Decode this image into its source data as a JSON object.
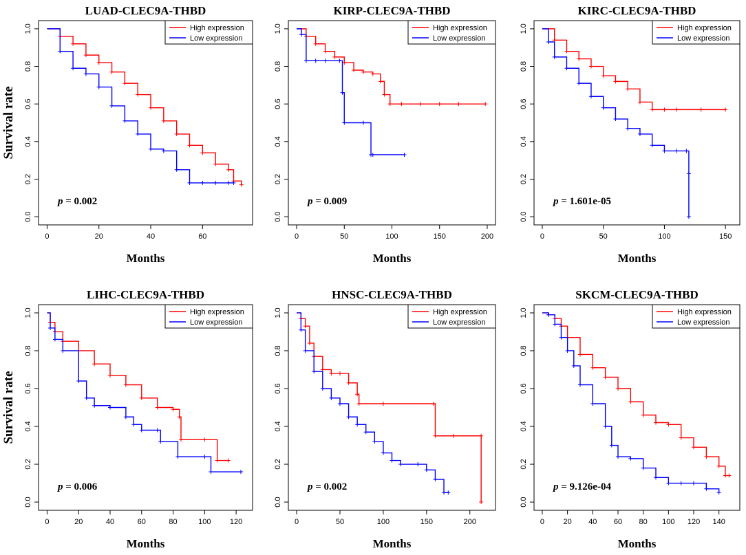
{
  "colors": {
    "high": "#ff0000",
    "low": "#0000ff",
    "axis": "#000000"
  },
  "figure": {
    "y_axis_label": "Survival rate"
  },
  "chart_data": [
    {
      "type": "line",
      "title": "LUAD-CLEC9A-THBD",
      "xlabel": "Months",
      "ylabel": "Survival rate",
      "xlim": [
        0,
        76
      ],
      "xticks": [
        0,
        20,
        40,
        60
      ],
      "ylim": [
        0,
        1
      ],
      "yticks": [
        0.0,
        0.2,
        0.4,
        0.6,
        0.8,
        1.0
      ],
      "legend": [
        "High expression",
        "Low expression"
      ],
      "p_prefix": "p",
      "p_value": "= 0.002",
      "series": [
        {
          "name": "High expression",
          "x": [
            0,
            5,
            10,
            15,
            20,
            25,
            30,
            35,
            40,
            45,
            50,
            55,
            60,
            65,
            70,
            72,
            75
          ],
          "y": [
            1.0,
            0.96,
            0.92,
            0.86,
            0.82,
            0.77,
            0.71,
            0.65,
            0.58,
            0.51,
            0.44,
            0.38,
            0.34,
            0.28,
            0.25,
            0.19,
            0.17
          ]
        },
        {
          "name": "Low expression",
          "x": [
            0,
            5,
            10,
            15,
            20,
            25,
            30,
            35,
            40,
            45,
            50,
            55,
            60,
            65,
            70,
            72
          ],
          "y": [
            1.0,
            0.88,
            0.79,
            0.76,
            0.69,
            0.59,
            0.51,
            0.44,
            0.36,
            0.35,
            0.25,
            0.18,
            0.18,
            0.18,
            0.18,
            0.18
          ]
        }
      ]
    },
    {
      "type": "line",
      "title": "KIRP-CLEC9A-THBD",
      "xlabel": "Months",
      "ylabel": "",
      "xlim": [
        0,
        200
      ],
      "xticks": [
        0,
        50,
        100,
        150,
        200
      ],
      "ylim": [
        0,
        1
      ],
      "yticks": [
        0.0,
        0.2,
        0.4,
        0.6,
        0.8,
        1.0
      ],
      "legend": [
        "High expression",
        "Low expression"
      ],
      "p_prefix": "p",
      "p_value": "= 0.009",
      "series": [
        {
          "name": "High expression",
          "x": [
            0,
            10,
            20,
            30,
            40,
            50,
            60,
            70,
            80,
            88,
            92,
            98,
            110,
            130,
            150,
            170,
            198
          ],
          "y": [
            1.0,
            0.96,
            0.92,
            0.88,
            0.85,
            0.82,
            0.78,
            0.77,
            0.76,
            0.72,
            0.65,
            0.6,
            0.6,
            0.6,
            0.6,
            0.6,
            0.6
          ]
        },
        {
          "name": "Low expression",
          "x": [
            0,
            5,
            10,
            20,
            30,
            45,
            48,
            50,
            70,
            78,
            80,
            113
          ],
          "y": [
            1.0,
            0.97,
            0.83,
            0.83,
            0.83,
            0.83,
            0.66,
            0.5,
            0.5,
            0.33,
            0.33,
            0.33
          ]
        }
      ]
    },
    {
      "type": "line",
      "title": "KIRC-CLEC9A-THBD",
      "xlabel": "Months",
      "ylabel": "",
      "xlim": [
        0,
        155
      ],
      "xticks": [
        0,
        50,
        100,
        150
      ],
      "ylim": [
        0,
        1
      ],
      "yticks": [
        0.0,
        0.2,
        0.4,
        0.6,
        0.8,
        1.0
      ],
      "legend": [
        "High expression",
        "Low expression"
      ],
      "p_prefix": "p",
      "p_value": "= 1.601e-05",
      "series": [
        {
          "name": "High expression",
          "x": [
            0,
            10,
            20,
            30,
            40,
            50,
            60,
            70,
            80,
            90,
            100,
            110,
            130,
            150
          ],
          "y": [
            1.0,
            0.94,
            0.88,
            0.84,
            0.8,
            0.75,
            0.72,
            0.68,
            0.61,
            0.57,
            0.57,
            0.57,
            0.57,
            0.57
          ]
        },
        {
          "name": "Low expression",
          "x": [
            0,
            5,
            10,
            20,
            30,
            40,
            50,
            60,
            70,
            80,
            90,
            100,
            110,
            118,
            120,
            120
          ],
          "y": [
            1.0,
            0.93,
            0.85,
            0.79,
            0.71,
            0.64,
            0.58,
            0.52,
            0.47,
            0.44,
            0.38,
            0.35,
            0.35,
            0.35,
            0.23,
            0.0
          ]
        }
      ]
    },
    {
      "type": "line",
      "title": "LIHC-CLEC9A-THBD",
      "xlabel": "Months",
      "ylabel": "Survival rate",
      "xlim": [
        0,
        125
      ],
      "xticks": [
        0,
        20,
        40,
        60,
        80,
        100,
        120
      ],
      "ylim": [
        0,
        1
      ],
      "yticks": [
        0.0,
        0.2,
        0.4,
        0.6,
        0.8,
        1.0
      ],
      "legend": [
        "High expression",
        "Low expression"
      ],
      "p_prefix": "p",
      "p_value": "= 0.006",
      "series": [
        {
          "name": "High expression",
          "x": [
            0,
            2,
            5,
            10,
            20,
            30,
            40,
            50,
            60,
            70,
            80,
            84,
            85,
            100,
            108,
            115
          ],
          "y": [
            1.0,
            0.95,
            0.9,
            0.85,
            0.8,
            0.73,
            0.67,
            0.62,
            0.55,
            0.5,
            0.49,
            0.45,
            0.33,
            0.33,
            0.22,
            0.22
          ]
        },
        {
          "name": "Low expression",
          "x": [
            0,
            2,
            5,
            10,
            20,
            25,
            30,
            40,
            50,
            55,
            60,
            70,
            72,
            83,
            100,
            104,
            123
          ],
          "y": [
            1.0,
            0.92,
            0.86,
            0.8,
            0.64,
            0.55,
            0.51,
            0.5,
            0.45,
            0.41,
            0.38,
            0.38,
            0.32,
            0.24,
            0.24,
            0.16,
            0.16
          ]
        }
      ]
    },
    {
      "type": "line",
      "title": "HNSC-CLEC9A-THBD",
      "xlabel": "Months",
      "ylabel": "",
      "xlim": [
        0,
        220
      ],
      "xticks": [
        0,
        50,
        100,
        150,
        200
      ],
      "ylim": [
        0,
        1
      ],
      "yticks": [
        0.0,
        0.2,
        0.4,
        0.6,
        0.8,
        1.0
      ],
      "legend": [
        "High expression",
        "Low expression"
      ],
      "p_prefix": "p",
      "p_value": "= 0.002",
      "series": [
        {
          "name": "High expression",
          "x": [
            0,
            5,
            10,
            15,
            20,
            30,
            40,
            50,
            60,
            70,
            72,
            100,
            158,
            160,
            181,
            213,
            213
          ],
          "y": [
            1.0,
            0.97,
            0.93,
            0.84,
            0.77,
            0.7,
            0.68,
            0.68,
            0.63,
            0.57,
            0.52,
            0.52,
            0.52,
            0.35,
            0.35,
            0.35,
            0.0
          ]
        },
        {
          "name": "Low expression",
          "x": [
            0,
            5,
            10,
            20,
            30,
            40,
            50,
            60,
            70,
            80,
            90,
            100,
            110,
            120,
            140,
            150,
            160,
            170,
            175
          ],
          "y": [
            1.0,
            0.91,
            0.8,
            0.69,
            0.6,
            0.55,
            0.52,
            0.45,
            0.41,
            0.37,
            0.32,
            0.26,
            0.22,
            0.2,
            0.2,
            0.17,
            0.12,
            0.05,
            0.05
          ]
        }
      ]
    },
    {
      "type": "line",
      "title": "SKCM-CLEC9A-THBD",
      "xlabel": "Months",
      "ylabel": "",
      "xlim": [
        0,
        150
      ],
      "xticks": [
        0,
        20,
        40,
        60,
        80,
        100,
        120,
        140
      ],
      "ylim": [
        0,
        1
      ],
      "yticks": [
        0.0,
        0.2,
        0.4,
        0.6,
        0.8,
        1.0
      ],
      "legend": [
        "High expression",
        "Low expression"
      ],
      "p_prefix": "p",
      "p_value": "= 9.126e-04",
      "series": [
        {
          "name": "High expression",
          "x": [
            0,
            5,
            10,
            15,
            20,
            30,
            40,
            50,
            60,
            70,
            80,
            90,
            100,
            110,
            120,
            130,
            140,
            145,
            148
          ],
          "y": [
            1.0,
            0.99,
            0.97,
            0.93,
            0.87,
            0.78,
            0.71,
            0.66,
            0.6,
            0.53,
            0.46,
            0.42,
            0.41,
            0.34,
            0.29,
            0.24,
            0.19,
            0.14,
            0.14
          ]
        },
        {
          "name": "Low expression",
          "x": [
            0,
            5,
            10,
            15,
            20,
            25,
            30,
            40,
            50,
            55,
            60,
            70,
            80,
            90,
            100,
            110,
            120,
            130,
            140
          ],
          "y": [
            1.0,
            0.99,
            0.94,
            0.87,
            0.8,
            0.72,
            0.62,
            0.52,
            0.4,
            0.3,
            0.24,
            0.23,
            0.18,
            0.13,
            0.1,
            0.1,
            0.1,
            0.07,
            0.05
          ]
        }
      ]
    }
  ]
}
